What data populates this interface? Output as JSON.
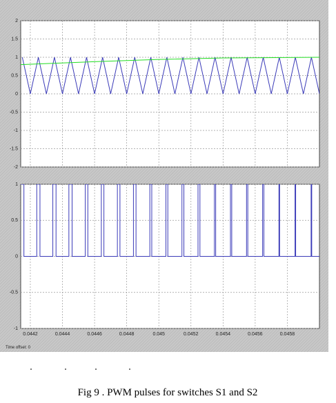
{
  "caption": "Fig 9 . PWM pulses for switches S1 and S2",
  "time_offset": "Time offset:  0",
  "chart_data": [
    {
      "type": "line",
      "ylim": [
        -2,
        2
      ],
      "yticks": [
        -2,
        -1.5,
        -1,
        -0.5,
        0,
        0.5,
        1,
        1.5,
        2
      ],
      "grid": true,
      "series": [
        {
          "color": "#3a3ab8",
          "x": [
            0.04415,
            0.0442,
            0.04425,
            0.0443,
            0.04435,
            0.0444,
            0.04445,
            0.0445,
            0.04455,
            0.0446,
            0.04465,
            0.0447,
            0.04475,
            0.0448,
            0.04485,
            0.0449,
            0.04495,
            0.045,
            0.04505,
            0.0451,
            0.04515,
            0.0452,
            0.04525,
            0.0453,
            0.04535,
            0.0454,
            0.04545,
            0.0455,
            0.04555,
            0.0456,
            0.04565,
            0.0457,
            0.04575,
            0.0458,
            0.04585,
            0.0459,
            0.04595,
            0.046
          ],
          "values": [
            1,
            0,
            1,
            0,
            1,
            0,
            1,
            0,
            1,
            0,
            1,
            0,
            1,
            0,
            1,
            0,
            1,
            0,
            1,
            0,
            1,
            0,
            1,
            0,
            1,
            0,
            1,
            0,
            1,
            0,
            1,
            0,
            1,
            0,
            1,
            0,
            1,
            0
          ]
        },
        {
          "color": "#22dd22",
          "x": [
            0.04414,
            0.0446,
            0.045,
            0.0454,
            0.046
          ],
          "values": [
            0.8,
            0.88,
            0.94,
            0.98,
            1.0
          ]
        }
      ]
    },
    {
      "type": "step",
      "xlim": [
        0.04414,
        0.046
      ],
      "xticks": [
        0.0442,
        0.0444,
        0.0446,
        0.0448,
        0.045,
        0.0452,
        0.0454,
        0.0456,
        0.0458
      ],
      "ylim": [
        -1,
        1
      ],
      "yticks": [
        -1,
        -0.5,
        0,
        0.5,
        1
      ],
      "grid": true,
      "series": [
        {
          "color": "#3a3ab8",
          "x": [
            0.04414,
            0.04416,
            0.04424,
            0.04426,
            0.04434,
            0.04436,
            0.04444,
            0.04446,
            0.044542,
            0.044558,
            0.044642,
            0.044658,
            0.044742,
            0.044758,
            0.044842,
            0.044858,
            0.044944,
            0.044956,
            0.045044,
            0.045056,
            0.045144,
            0.045156,
            0.045244,
            0.045256,
            0.045346,
            0.045354,
            0.045446,
            0.045454,
            0.045546,
            0.045554,
            0.045646,
            0.045654,
            0.045748,
            0.045752,
            0.045848,
            0.045852,
            0.045948,
            0.045952,
            0.046
          ],
          "values": [
            1,
            0,
            1,
            0,
            1,
            0,
            1,
            0,
            1,
            0,
            1,
            0,
            1,
            0,
            1,
            0,
            1,
            0,
            1,
            0,
            1,
            0,
            1,
            0,
            1,
            0,
            1,
            0,
            1,
            0,
            1,
            0,
            1,
            0,
            1,
            0,
            1,
            0,
            0
          ]
        }
      ]
    }
  ]
}
